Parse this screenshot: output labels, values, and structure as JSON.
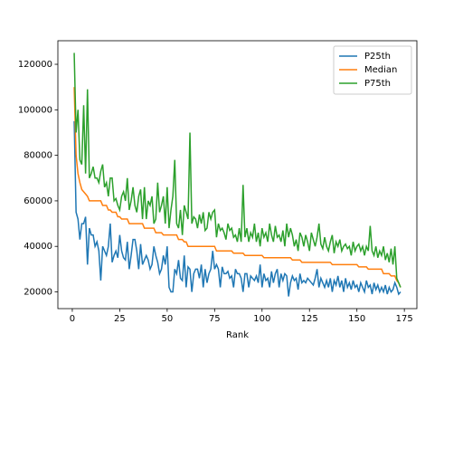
{
  "chart_data": {
    "type": "line",
    "xlabel": "Rank",
    "x": [
      1,
      2,
      3,
      4,
      5,
      6,
      7,
      8,
      9,
      10,
      11,
      12,
      13,
      14,
      15,
      16,
      17,
      18,
      19,
      20,
      21,
      22,
      23,
      24,
      25,
      26,
      27,
      28,
      29,
      30,
      31,
      32,
      33,
      34,
      35,
      36,
      37,
      38,
      39,
      40,
      41,
      42,
      43,
      44,
      45,
      46,
      47,
      48,
      49,
      50,
      51,
      52,
      53,
      54,
      55,
      56,
      57,
      58,
      59,
      60,
      61,
      62,
      63,
      64,
      65,
      66,
      67,
      68,
      69,
      70,
      71,
      72,
      73,
      74,
      75,
      76,
      77,
      78,
      79,
      80,
      81,
      82,
      83,
      84,
      85,
      86,
      87,
      88,
      89,
      90,
      91,
      92,
      93,
      94,
      95,
      96,
      97,
      98,
      99,
      100,
      101,
      102,
      103,
      104,
      105,
      106,
      107,
      108,
      109,
      110,
      111,
      112,
      113,
      114,
      115,
      116,
      117,
      118,
      119,
      120,
      121,
      122,
      123,
      124,
      125,
      126,
      127,
      128,
      129,
      130,
      131,
      132,
      133,
      134,
      135,
      136,
      137,
      138,
      139,
      140,
      141,
      142,
      143,
      144,
      145,
      146,
      147,
      148,
      149,
      150,
      151,
      152,
      153,
      154,
      155,
      156,
      157,
      158,
      159,
      160,
      161,
      162,
      163,
      164,
      165,
      166,
      167,
      168,
      169,
      170,
      171,
      172,
      173
    ],
    "series": [
      {
        "name": "P25th",
        "color": "#1f77b4",
        "values": [
          95000,
          55000,
          52000,
          43000,
          50000,
          50000,
          53000,
          32000,
          48000,
          45000,
          45000,
          40000,
          42000,
          38000,
          25000,
          40000,
          38000,
          36000,
          40000,
          50000,
          33000,
          36000,
          38000,
          35000,
          45000,
          38000,
          35000,
          34000,
          42000,
          30000,
          36000,
          43000,
          43000,
          38000,
          30000,
          41000,
          32000,
          34000,
          36000,
          34000,
          30000,
          32000,
          40000,
          36000,
          33000,
          28000,
          30000,
          36000,
          32000,
          40000,
          22000,
          20000,
          20000,
          30000,
          28000,
          34000,
          26000,
          25000,
          36000,
          22000,
          31000,
          30000,
          20000,
          28000,
          30000,
          30000,
          26000,
          32000,
          22000,
          30000,
          24000,
          28000,
          30000,
          38000,
          30000,
          32000,
          30000,
          22000,
          31000,
          28000,
          28000,
          29000,
          26000,
          27000,
          22000,
          30000,
          28000,
          28000,
          26000,
          20000,
          28000,
          28000,
          22000,
          27000,
          26000,
          25000,
          27000,
          24000,
          32000,
          22000,
          28000,
          25000,
          26000,
          22000,
          29000,
          24000,
          28000,
          30000,
          22000,
          28000,
          25000,
          28000,
          27000,
          18000,
          24000,
          27000,
          25000,
          26000,
          21000,
          28000,
          24000,
          25000,
          24000,
          26000,
          25000,
          24000,
          23000,
          26000,
          30000,
          22000,
          26000,
          24000,
          22000,
          25000,
          22000,
          26000,
          20000,
          25000,
          23000,
          27000,
          22000,
          25000,
          20000,
          26000,
          22000,
          24000,
          21000,
          25000,
          22000,
          23000,
          20000,
          24000,
          22000,
          20000,
          25000,
          22000,
          23000,
          19000,
          24000,
          21000,
          23000,
          20000,
          22000,
          20000,
          23000,
          19000,
          22000,
          20000,
          21000,
          24000,
          22000,
          19000,
          20000
        ]
      },
      {
        "name": "Median",
        "color": "#ff7f0e",
        "values": [
          110000,
          80000,
          72000,
          68000,
          65000,
          64000,
          63000,
          62000,
          60000,
          60000,
          60000,
          60000,
          60000,
          60000,
          60000,
          58000,
          58000,
          58000,
          56000,
          56000,
          55000,
          55000,
          55000,
          53000,
          53000,
          52000,
          52000,
          52000,
          52000,
          50000,
          50000,
          50000,
          50000,
          50000,
          50000,
          50000,
          50000,
          48000,
          48000,
          48000,
          48000,
          48000,
          48000,
          46000,
          46000,
          46000,
          46000,
          45000,
          45000,
          45000,
          45000,
          45000,
          45000,
          45000,
          45000,
          43000,
          43000,
          43000,
          42000,
          42000,
          40000,
          40000,
          40000,
          40000,
          40000,
          40000,
          40000,
          40000,
          40000,
          40000,
          40000,
          40000,
          40000,
          40000,
          40000,
          38000,
          38000,
          38000,
          38000,
          38000,
          38000,
          38000,
          38000,
          38000,
          37000,
          37000,
          37000,
          37000,
          37000,
          37000,
          36000,
          36000,
          36000,
          36000,
          36000,
          36000,
          36000,
          36000,
          36000,
          36000,
          35000,
          35000,
          35000,
          35000,
          35000,
          35000,
          35000,
          35000,
          35000,
          35000,
          35000,
          35000,
          35000,
          35000,
          35000,
          34000,
          34000,
          34000,
          34000,
          34000,
          33000,
          33000,
          33000,
          33000,
          33000,
          33000,
          33000,
          33000,
          33000,
          33000,
          33000,
          33000,
          33000,
          33000,
          33000,
          33000,
          32000,
          32000,
          32000,
          32000,
          32000,
          32000,
          32000,
          32000,
          32000,
          32000,
          32000,
          32000,
          32000,
          32000,
          31000,
          31000,
          31000,
          31000,
          31000,
          30000,
          30000,
          30000,
          30000,
          30000,
          30000,
          30000,
          30000,
          28000,
          28000,
          28000,
          28000,
          27000,
          27000,
          27000,
          25000,
          24000,
          22000
        ]
      },
      {
        "name": "P75th",
        "color": "#2ca02c",
        "values": [
          125000,
          90000,
          100000,
          78000,
          76000,
          102000,
          72000,
          109000,
          70000,
          72000,
          75000,
          70000,
          70000,
          68000,
          73000,
          76000,
          66000,
          68000,
          62000,
          70000,
          70000,
          60000,
          61000,
          58000,
          56000,
          62000,
          64000,
          60000,
          70000,
          56000,
          60000,
          66000,
          58000,
          55000,
          62000,
          65000,
          52000,
          66000,
          52000,
          60000,
          58000,
          62000,
          50000,
          52000,
          68000,
          55000,
          58000,
          62000,
          50000,
          66000,
          48000,
          56000,
          62000,
          78000,
          50000,
          48000,
          56000,
          45000,
          58000,
          55000,
          52000,
          90000,
          50000,
          53000,
          52000,
          48000,
          54000,
          50000,
          55000,
          47000,
          48000,
          55000,
          52000,
          55000,
          56000,
          44000,
          50000,
          47000,
          48000,
          46000,
          43000,
          50000,
          47000,
          48000,
          44000,
          45000,
          42000,
          48000,
          42000,
          67000,
          44000,
          48000,
          42000,
          46000,
          44000,
          50000,
          42000,
          46000,
          40000,
          48000,
          44000,
          46000,
          42000,
          50000,
          45000,
          42000,
          49000,
          44000,
          45000,
          42000,
          47000,
          40000,
          50000,
          44000,
          48000,
          45000,
          40000,
          43000,
          38000,
          46000,
          44000,
          40000,
          45000,
          42000,
          38000,
          46000,
          43000,
          40000,
          44000,
          50000,
          41000,
          39000,
          44000,
          40000,
          38000,
          42000,
          45000,
          37000,
          42000,
          40000,
          43000,
          38000,
          40000,
          41000,
          39000,
          40000,
          36000,
          42000,
          38000,
          40000,
          41000,
          38000,
          40000,
          36000,
          40000,
          38000,
          49000,
          38000,
          36000,
          40000,
          35000,
          38000,
          36000,
          40000,
          34000,
          37000,
          33000,
          39000,
          32000,
          40000,
          26000,
          24000,
          22000
        ]
      }
    ],
    "xlim": [
      -7.6,
      181.6
    ],
    "xticks": [
      0,
      25,
      50,
      75,
      100,
      125,
      150,
      175
    ],
    "ylim": [
      12650,
      130350
    ],
    "yticks": [
      20000,
      40000,
      60000,
      80000,
      100000,
      120000
    ],
    "legend": "upper right"
  }
}
